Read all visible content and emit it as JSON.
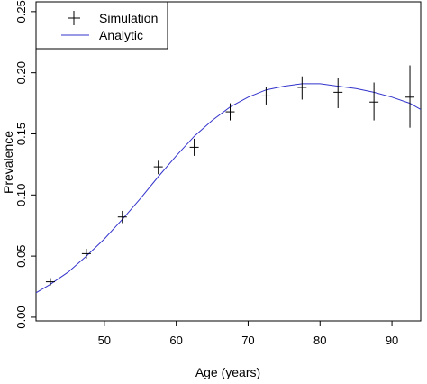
{
  "chart_data": {
    "type": "line",
    "xlabel": "Age (years)",
    "ylabel": "Prevalence",
    "xlim": [
      40.5,
      94
    ],
    "ylim": [
      -0.003,
      0.258
    ],
    "x_ticks": [
      50,
      60,
      70,
      80,
      90
    ],
    "y_ticks": [
      0.0,
      0.05,
      0.1,
      0.15,
      0.2,
      0.25
    ],
    "y_tick_labels": [
      "0.00",
      "0.05",
      "0.10",
      "0.15",
      "0.20",
      "0.25"
    ],
    "grid": false,
    "legend": {
      "placement": "top-left",
      "entries": [
        {
          "label": "Simulation",
          "marker": "plus-with-errorbar",
          "color": "#000000"
        },
        {
          "label": "Analytic",
          "marker": "line",
          "color": "#3333cc"
        }
      ]
    },
    "series": [
      {
        "name": "Simulation",
        "kind": "points",
        "color": "#000000",
        "x": [
          42.5,
          47.5,
          52.5,
          57.5,
          62.5,
          67.5,
          72.5,
          77.5,
          82.5,
          87.5,
          92.5
        ],
        "y": [
          0.029,
          0.052,
          0.082,
          0.123,
          0.139,
          0.168,
          0.181,
          0.188,
          0.184,
          0.176,
          0.18
        ],
        "err_low": [
          0.026,
          0.048,
          0.077,
          0.117,
          0.132,
          0.161,
          0.174,
          0.178,
          0.171,
          0.161,
          0.155
        ],
        "err_high": [
          0.032,
          0.056,
          0.087,
          0.128,
          0.146,
          0.175,
          0.188,
          0.197,
          0.196,
          0.192,
          0.206
        ]
      },
      {
        "name": "Analytic",
        "kind": "line",
        "color": "#3333cc",
        "x": [
          40.5,
          42.5,
          45,
          47.5,
          50,
          52.5,
          55,
          57.5,
          60,
          62.5,
          65,
          67.5,
          70,
          72.5,
          75,
          77.5,
          80,
          82.5,
          85,
          87.5,
          90,
          92.5,
          94
        ],
        "y": [
          0.02,
          0.027,
          0.037,
          0.05,
          0.064,
          0.08,
          0.097,
          0.115,
          0.132,
          0.148,
          0.161,
          0.172,
          0.18,
          0.186,
          0.189,
          0.191,
          0.191,
          0.189,
          0.187,
          0.184,
          0.18,
          0.175,
          0.17
        ]
      }
    ]
  }
}
